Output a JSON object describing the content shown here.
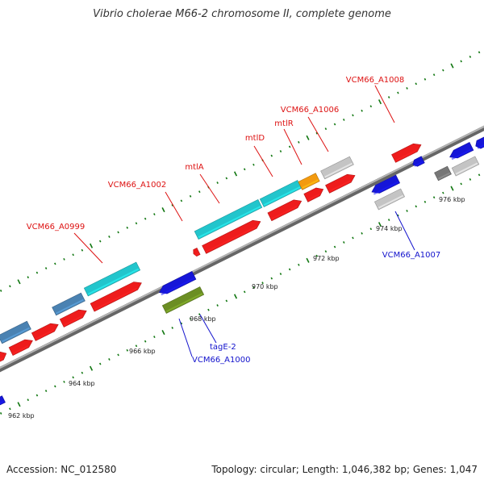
{
  "title": "Vibrio cholerae M66-2 chromosome II, complete genome",
  "footer": {
    "accession": "Accession: NC_012580",
    "summary": "Topology: circular; Length: 1,046,382 bp; Genes: 1,047"
  },
  "colors": {
    "backbone": "#888888",
    "forward_label": "#dd1111",
    "reverse_label": "#1111cc",
    "tick": "#117711",
    "cds_red": "#ee1c1c",
    "cds_cyan": "#22c5cc",
    "cds_steel": "#4a82b2",
    "cds_blue": "#1616d8",
    "cds_olive": "#6b8e23",
    "cds_gray": "#c4c4c4",
    "cds_dark": "#777777",
    "cds_orange": "#f39a0e"
  },
  "ticks": [
    "962 kbp",
    "964 kbp",
    "966 kbp",
    "968 kbp",
    "970 kbp",
    "972 kbp",
    "974 kbp",
    "976 kbp"
  ],
  "gene_labels": {
    "VCM66_A0999": "VCM66_A0999",
    "VCM66_A1002": "VCM66_A1002",
    "mtlA": "mtlA",
    "mtlD": "mtlD",
    "mtlR": "mtlR",
    "VCM66_A1006": "VCM66_A1006",
    "VCM66_A1008": "VCM66_A1008",
    "VCM66_A1007": "VCM66_A1007",
    "tagE-2": "tagE-2",
    "VCM66_A1000": "VCM66_A1000"
  }
}
